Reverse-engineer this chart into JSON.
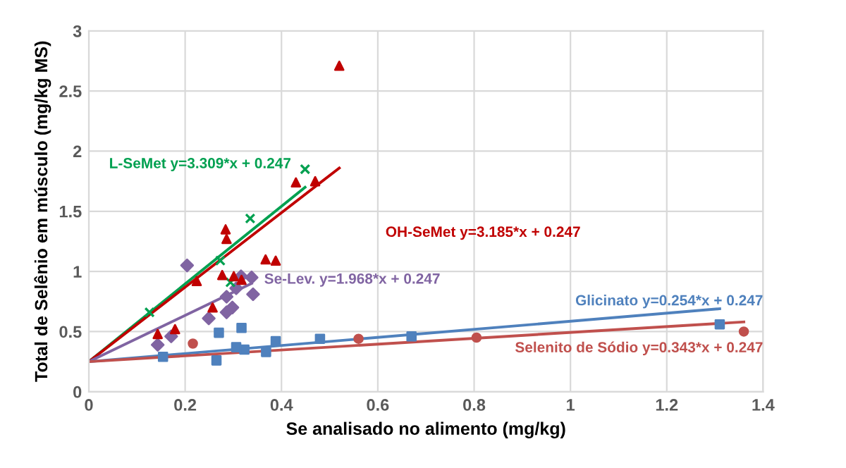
{
  "chart_data": {
    "type": "scatter",
    "xlabel": "Se analisado no alimento (mg/kg)",
    "ylabel": "Total de Selênio em músculo (mg/kg MS)",
    "xlim": [
      0,
      1.4
    ],
    "ylim": [
      0,
      3
    ],
    "xticks": [
      0,
      0.2,
      0.4,
      0.6,
      0.8,
      1,
      1.2,
      1.4
    ],
    "yticks": [
      0,
      0.5,
      1,
      1.5,
      2,
      2.5,
      3
    ],
    "grid": true,
    "legend": false,
    "series": [
      {
        "marker": "triangle",
        "color": "#c00000",
        "x": [
          0.52,
          0.43,
          0.47,
          0.284,
          0.286,
          0.367,
          0.388,
          0.277,
          0.301,
          0.317,
          0.224,
          0.257,
          0.179,
          0.143
        ],
        "values": [
          2.71,
          1.74,
          1.75,
          1.35,
          1.27,
          1.1,
          1.09,
          0.97,
          0.96,
          0.93,
          0.92,
          0.7,
          0.52,
          0.48
        ]
      },
      {
        "marker": "cross",
        "color": "#00a050",
        "x": [
          0.126,
          0.273,
          0.335,
          0.449,
          0.294
        ],
        "values": [
          0.66,
          1.09,
          1.44,
          1.85,
          0.91
        ]
      },
      {
        "marker": "diamond",
        "color": "#8064a2",
        "x": [
          0.204,
          0.316,
          0.338,
          0.306,
          0.341,
          0.286,
          0.298,
          0.286,
          0.249,
          0.171,
          0.143
        ],
        "values": [
          1.05,
          0.96,
          0.95,
          0.86,
          0.81,
          0.79,
          0.7,
          0.66,
          0.61,
          0.46,
          0.39
        ]
      },
      {
        "marker": "square",
        "color": "#4f81bd",
        "x": [
          0.154,
          0.27,
          0.317,
          0.306,
          0.323,
          0.265,
          0.368,
          0.388,
          0.48,
          0.67,
          1.31
        ],
        "values": [
          0.29,
          0.49,
          0.53,
          0.37,
          0.35,
          0.26,
          0.33,
          0.42,
          0.44,
          0.46,
          0.56
        ]
      },
      {
        "marker": "circle",
        "color": "#c0504d",
        "x": [
          0.216,
          0.56,
          0.805,
          1.36
        ],
        "values": [
          0.4,
          0.44,
          0.45,
          0.5
        ]
      },
      {
        "type": "line",
        "name": "L-SeMet y=3.309*x + 0.247",
        "color": "#00a050",
        "x": [
          0,
          0.449
        ],
        "values": [
          0.25,
          1.7
        ]
      },
      {
        "type": "line",
        "name": "OH-SeMet y=3.185*x + 0.247",
        "color": "#c00000",
        "x": [
          0,
          0.52
        ],
        "values": [
          0.25,
          1.86
        ]
      },
      {
        "type": "line",
        "name": "Se-Lev. y=1.968*x + 0.247",
        "color": "#8064a2",
        "x": [
          0,
          0.338
        ],
        "values": [
          0.25,
          0.9
        ]
      },
      {
        "type": "line",
        "name": "Glicinato y=0.254*x + 0.247",
        "color": "#4f81bd",
        "x": [
          0,
          1.31
        ],
        "values": [
          0.25,
          0.69
        ]
      },
      {
        "type": "line",
        "name": "Selenito de Sódio y=0.343*x + 0.247",
        "color": "#c0504d",
        "x": [
          0,
          1.36
        ],
        "values": [
          0.25,
          0.58
        ]
      }
    ]
  }
}
